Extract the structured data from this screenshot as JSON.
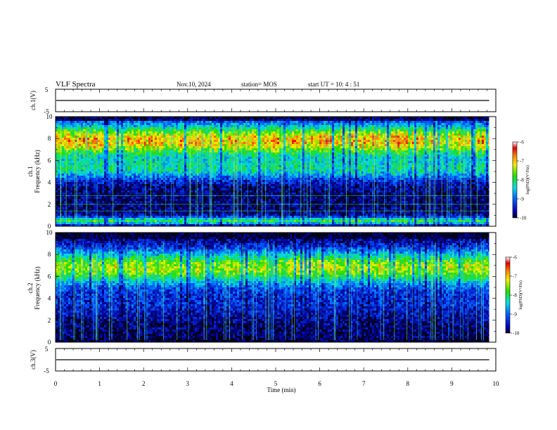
{
  "header": {
    "title": "VLF Spectra",
    "date": "Nov.10, 2024",
    "station": "station= MOS",
    "start_ut": "start  UT  =   10: 4  : 51"
  },
  "chart_data": [
    {
      "type": "line",
      "panel": "ch1-waveform",
      "ylabel": "ch.1(V)",
      "ylim": [
        -5,
        5
      ],
      "yticks": [
        "5",
        "-5"
      ],
      "xlim": [
        0,
        10
      ],
      "series": [
        {
          "values_note_level": 0
        }
      ],
      "level": 0,
      "x_end": 9.85
    },
    {
      "type": "heatmap",
      "panel": "ch1-spectrogram",
      "ylabel": "ch.1\nFrequency (kHz)",
      "ylabel_line1": "ch.1",
      "ylabel_line2": "Frequency  (kHz)",
      "ylim": [
        0,
        10
      ],
      "yticks": [
        "0",
        "2",
        "4",
        "6",
        "8",
        "10"
      ],
      "xlim": [
        0,
        10
      ],
      "x_end": 9.85,
      "colorbar": {
        "ticks": [
          "-6",
          "-7",
          "-8",
          "-9",
          "-10"
        ],
        "label": "log(PSD)(V²/Hz)",
        "range": [
          -10,
          -6
        ]
      }
    },
    {
      "type": "heatmap",
      "panel": "ch2-spectrogram",
      "ylabel_line1": "ch.2",
      "ylabel_line2": "Frequency  (kHz)",
      "ylim": [
        0,
        10
      ],
      "yticks": [
        "0",
        "2",
        "4",
        "6",
        "8",
        "10"
      ],
      "xlim": [
        0,
        10
      ],
      "x_end": 9.85,
      "colorbar": {
        "ticks": [
          "-6",
          "-7",
          "-8",
          "-9",
          "-10"
        ],
        "label": "log(PSD)(V²/Hz)",
        "range": [
          -10,
          -6
        ]
      }
    },
    {
      "type": "line",
      "panel": "ch3-waveform",
      "ylabel": "ch.3(V)",
      "ylim": [
        -5,
        5
      ],
      "yticks": [
        "5",
        "-5"
      ],
      "xlim": [
        0,
        10
      ],
      "level": 0,
      "x_end": 9.85,
      "xlabel": "Time  (min)",
      "xticks": [
        "0",
        "1",
        "2",
        "3",
        "4",
        "5",
        "6",
        "7",
        "8",
        "9",
        "10"
      ]
    }
  ]
}
